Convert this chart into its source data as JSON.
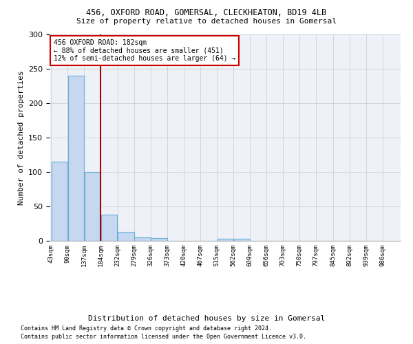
{
  "title1": "456, OXFORD ROAD, GOMERSAL, CLECKHEATON, BD19 4LB",
  "title2": "Size of property relative to detached houses in Gomersal",
  "xlabel": "Distribution of detached houses by size in Gomersal",
  "ylabel": "Number of detached properties",
  "footer1": "Contains HM Land Registry data © Crown copyright and database right 2024.",
  "footer2": "Contains public sector information licensed under the Open Government Licence v3.0.",
  "bins_left": [
    43,
    90,
    137,
    184,
    232,
    279,
    326,
    373,
    420,
    467,
    515,
    562,
    609,
    656,
    703,
    750,
    797,
    845,
    892,
    939
  ],
  "bin_width": 47,
  "bar_heights": [
    115,
    240,
    100,
    38,
    13,
    5,
    4,
    0,
    0,
    0,
    3,
    3,
    0,
    0,
    0,
    0,
    0,
    0,
    0,
    0
  ],
  "tick_labels": [
    "43sqm",
    "90sqm",
    "137sqm",
    "184sqm",
    "232sqm",
    "279sqm",
    "326sqm",
    "373sqm",
    "420sqm",
    "467sqm",
    "515sqm",
    "562sqm",
    "609sqm",
    "656sqm",
    "703sqm",
    "750sqm",
    "797sqm",
    "845sqm",
    "892sqm",
    "939sqm",
    "986sqm"
  ],
  "tick_positions": [
    43,
    90,
    137,
    184,
    232,
    279,
    326,
    373,
    420,
    467,
    515,
    562,
    609,
    656,
    703,
    750,
    797,
    845,
    892,
    939,
    986
  ],
  "bar_color": "#c5d8f0",
  "bar_edge_color": "#6baed6",
  "vline_x": 184,
  "vline_color": "#aa0000",
  "annotation_text": "456 OXFORD ROAD: 182sqm\n← 88% of detached houses are smaller (451)\n12% of semi-detached houses are larger (64) →",
  "annotation_box_color": "#cc0000",
  "ylim": [
    0,
    300
  ],
  "yticks": [
    0,
    50,
    100,
    150,
    200,
    250,
    300
  ],
  "bg_color": "#ffffff",
  "grid_color": "#d0d0d0",
  "plot_bg_color": "#eef2f8"
}
